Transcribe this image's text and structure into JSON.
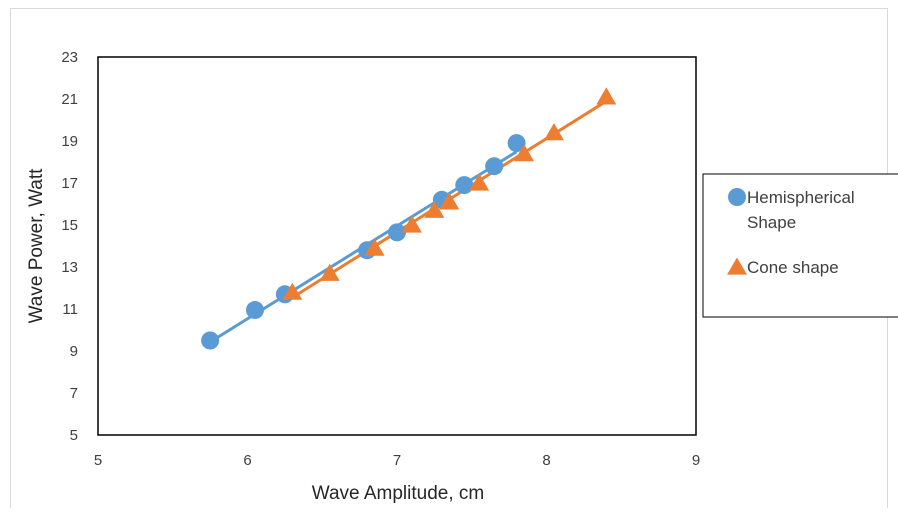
{
  "chart_data": {
    "type": "scatter",
    "xlabel": "Wave Amplitude, cm",
    "ylabel": "Wave Power, Watt",
    "xlim": [
      5,
      9
    ],
    "ylim": [
      5,
      23
    ],
    "x_ticks": [
      "5",
      "6",
      "7",
      "8",
      "9"
    ],
    "y_ticks": [
      "5",
      "7",
      "9",
      "11",
      "13",
      "15",
      "17",
      "19",
      "21",
      "23"
    ],
    "grid": false,
    "legend_position": "right",
    "series": [
      {
        "name": "Hemispherical Shape",
        "name_lines": [
          "Hemispherical",
          "Shape"
        ],
        "marker": "circle",
        "color": "#5b9bd5",
        "trendline": true,
        "points": [
          [
            5.75,
            9.5
          ],
          [
            6.05,
            10.95
          ],
          [
            6.25,
            11.7
          ],
          [
            6.8,
            13.8
          ],
          [
            7.0,
            14.65
          ],
          [
            7.3,
            16.2
          ],
          [
            7.45,
            16.9
          ],
          [
            7.65,
            17.8
          ],
          [
            7.8,
            18.9
          ]
        ]
      },
      {
        "name": "Cone shape",
        "name_lines": [
          "Cone shape"
        ],
        "marker": "triangle",
        "color": "#ed7d31",
        "trendline": true,
        "points": [
          [
            6.3,
            11.8
          ],
          [
            6.55,
            12.7
          ],
          [
            6.85,
            13.9
          ],
          [
            7.1,
            15.0
          ],
          [
            7.25,
            15.7
          ],
          [
            7.35,
            16.1
          ],
          [
            7.55,
            17.0
          ],
          [
            7.85,
            18.4
          ],
          [
            8.05,
            19.4
          ],
          [
            8.4,
            21.1
          ]
        ]
      }
    ]
  }
}
